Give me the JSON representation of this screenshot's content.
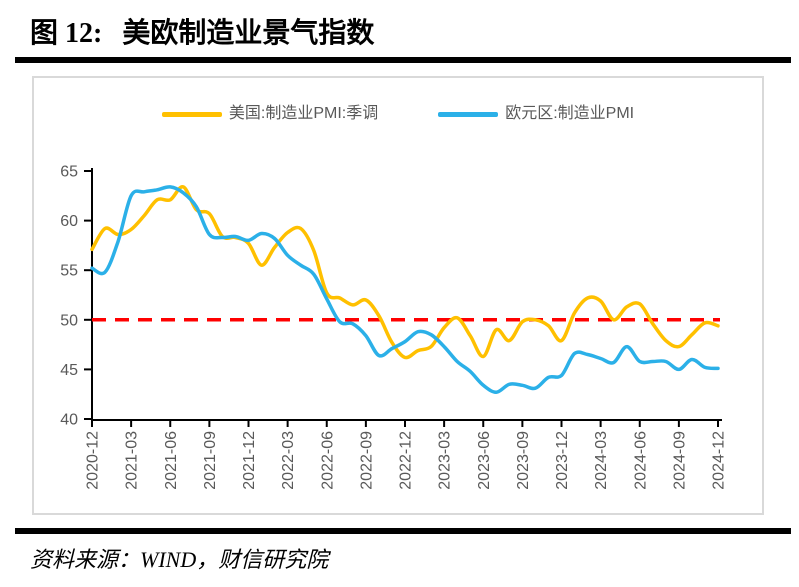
{
  "header": {
    "figure_label": "图 12:",
    "figure_title": "美欧制造业景气指数"
  },
  "legend": [
    {
      "label": "美国:制造业PMI:季调",
      "color": "#FFC000"
    },
    {
      "label": "欧元区:制造业PMI",
      "color": "#2BB0E8"
    }
  ],
  "footer": {
    "source_note": "资料来源：WIND，财信研究院"
  },
  "colors": {
    "us_series": "#FFC000",
    "eurozone_series": "#2BB0E8",
    "reference_line": "#FF0000",
    "axis": "#000000",
    "tick_text": "#595959",
    "box_border": "#d9d9d9"
  },
  "chart_data": {
    "type": "line",
    "title": "美欧制造业景气指数",
    "xlabel": "",
    "ylabel": "",
    "ylim": [
      40,
      65
    ],
    "y_ticks": [
      40,
      45,
      50,
      55,
      60,
      65
    ],
    "grid": false,
    "smooth": true,
    "legend_position": "top",
    "reference_line": {
      "value": 50,
      "color": "#FF0000",
      "style": "dashed"
    },
    "x": [
      "2020-12",
      "2021-01",
      "2021-02",
      "2021-03",
      "2021-04",
      "2021-05",
      "2021-06",
      "2021-07",
      "2021-08",
      "2021-09",
      "2021-10",
      "2021-11",
      "2021-12",
      "2022-01",
      "2022-02",
      "2022-03",
      "2022-04",
      "2022-05",
      "2022-06",
      "2022-07",
      "2022-08",
      "2022-09",
      "2022-10",
      "2022-11",
      "2022-12",
      "2023-01",
      "2023-02",
      "2023-03",
      "2023-04",
      "2023-05",
      "2023-06",
      "2023-07",
      "2023-08",
      "2023-09",
      "2023-10",
      "2023-11",
      "2023-12",
      "2024-01",
      "2024-02",
      "2024-03",
      "2024-04",
      "2024-05",
      "2024-06",
      "2024-07",
      "2024-08",
      "2024-09",
      "2024-10",
      "2024-11",
      "2024-12"
    ],
    "x_tick_labels": [
      "2020-12",
      "2021-03",
      "2021-06",
      "2021-09",
      "2021-12",
      "2022-03",
      "2022-06",
      "2022-09",
      "2022-12",
      "2023-03",
      "2023-06",
      "2023-09",
      "2023-12",
      "2024-03",
      "2024-06",
      "2024-09",
      "2024-12"
    ],
    "series": [
      {
        "name": "美国:制造业PMI:季调",
        "color": "#FFC000",
        "values": [
          57.1,
          59.2,
          58.6,
          59.1,
          60.5,
          62.1,
          62.1,
          63.4,
          61.1,
          60.7,
          58.4,
          58.3,
          57.7,
          55.5,
          57.3,
          58.8,
          59.2,
          57.0,
          52.7,
          52.2,
          51.5,
          52.0,
          50.4,
          47.7,
          46.2,
          46.9,
          47.3,
          49.2,
          50.2,
          48.4,
          46.3,
          49.0,
          47.9,
          49.8,
          50.0,
          49.4,
          47.9,
          50.7,
          52.2,
          51.9,
          50.0,
          51.3,
          51.6,
          49.6,
          47.9,
          47.3,
          48.5,
          49.7,
          49.4
        ]
      },
      {
        "name": "欧元区:制造业PMI",
        "color": "#2BB0E8",
        "values": [
          55.2,
          54.8,
          57.9,
          62.5,
          62.9,
          63.1,
          63.4,
          62.8,
          61.4,
          58.6,
          58.3,
          58.4,
          58.0,
          58.7,
          58.2,
          56.5,
          55.5,
          54.6,
          52.1,
          49.8,
          49.6,
          48.4,
          46.4,
          47.1,
          47.8,
          48.8,
          48.5,
          47.3,
          45.8,
          44.8,
          43.4,
          42.7,
          43.5,
          43.4,
          43.1,
          44.2,
          44.4,
          46.6,
          46.5,
          46.1,
          45.7,
          47.3,
          45.8,
          45.8,
          45.8,
          45.0,
          46.0,
          45.2,
          45.1
        ]
      }
    ]
  }
}
